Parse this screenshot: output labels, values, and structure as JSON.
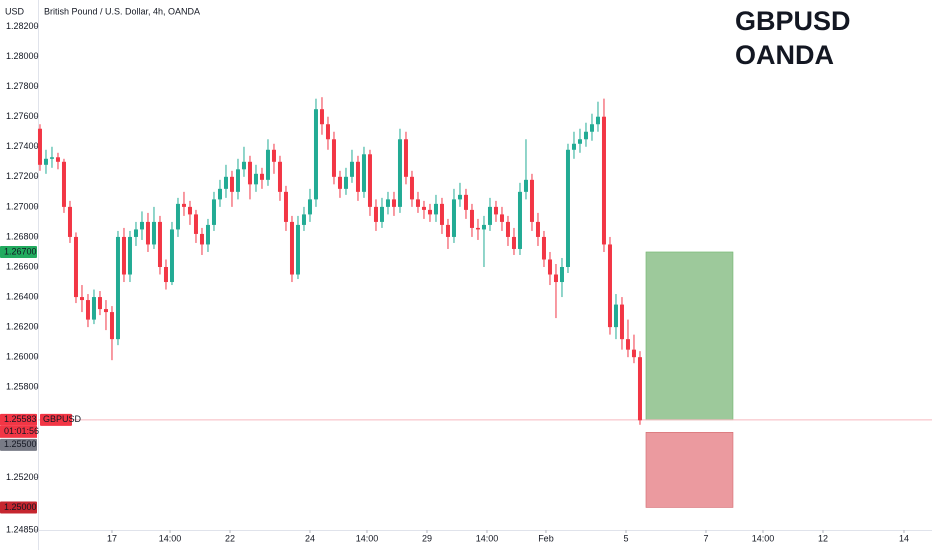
{
  "chart_data": {
    "type": "candlestick",
    "title": "British Pound / U.S. Dollar, 4h, OANDA",
    "y_axis_label": "USD",
    "watermark": [
      "GBPUSD",
      "OANDA"
    ],
    "symbol": "GBPUSD",
    "countdown": "01:01:56",
    "up_color": "#22ab94",
    "down_color": "#f23645",
    "ylim": [
      1.2485,
      1.2835
    ],
    "yticks": [
      {
        "value": 1.282,
        "label": "1.28200"
      },
      {
        "value": 1.28,
        "label": "1.28000"
      },
      {
        "value": 1.278,
        "label": "1.27800"
      },
      {
        "value": 1.276,
        "label": "1.27600"
      },
      {
        "value": 1.274,
        "label": "1.27400"
      },
      {
        "value": 1.272,
        "label": "1.27200"
      },
      {
        "value": 1.27,
        "label": "1.27000"
      },
      {
        "value": 1.268,
        "label": "1.26800"
      },
      {
        "value": 1.266,
        "label": "1.26600"
      },
      {
        "value": 1.264,
        "label": "1.26400"
      },
      {
        "value": 1.262,
        "label": "1.26200"
      },
      {
        "value": 1.26,
        "label": "1.26000"
      },
      {
        "value": 1.258,
        "label": "1.25800"
      },
      {
        "value": 1.252,
        "label": "1.25200"
      },
      {
        "value": 1.2485,
        "label": "1.24850"
      }
    ],
    "xlim": [
      -0.33,
      148.67
    ],
    "xticks": [
      {
        "value": 12,
        "label": "17"
      },
      {
        "value": 21.67,
        "label": "14:00"
      },
      {
        "value": 31.67,
        "label": "22"
      },
      {
        "value": 45,
        "label": "24"
      },
      {
        "value": 54.5,
        "label": "14:00"
      },
      {
        "value": 64.5,
        "label": "29"
      },
      {
        "value": 74.5,
        "label": "14:00"
      },
      {
        "value": 84.33,
        "label": "Feb"
      },
      {
        "value": 97.67,
        "label": "5"
      },
      {
        "value": 111,
        "label": "7"
      },
      {
        "value": 120.5,
        "label": "14:00"
      },
      {
        "value": 130.5,
        "label": "12"
      },
      {
        "value": 144,
        "label": "14"
      }
    ],
    "current_price": {
      "value": 1.25583,
      "label": "1.25583"
    },
    "position": {
      "x_range": [
        101,
        115.5
      ],
      "target": {
        "value": 1.267,
        "label": "1.26700"
      },
      "entry": {
        "value": 1.255,
        "label": "1.25500"
      },
      "stop": {
        "value": 1.25,
        "label": "1.25000"
      },
      "profit_color": "#9dc99b",
      "loss_color": "#eb9a9f"
    },
    "ohlc": [
      [
        1.2752,
        1.2755,
        1.2724,
        1.2728
      ],
      [
        1.2728,
        1.2738,
        1.2722,
        1.2732
      ],
      [
        1.2732,
        1.274,
        1.2726,
        1.2733
      ],
      [
        1.2733,
        1.2736,
        1.2725,
        1.273
      ],
      [
        1.273,
        1.2732,
        1.2696,
        1.27
      ],
      [
        1.27,
        1.2704,
        1.2676,
        1.268
      ],
      [
        1.268,
        1.2683,
        1.2636,
        1.264
      ],
      [
        1.264,
        1.2648,
        1.263,
        1.2638
      ],
      [
        1.2638,
        1.2642,
        1.262,
        1.2625
      ],
      [
        1.2625,
        1.2645,
        1.2622,
        1.264
      ],
      [
        1.264,
        1.2644,
        1.2628,
        1.2632
      ],
      [
        1.2632,
        1.2638,
        1.2618,
        1.263
      ],
      [
        1.263,
        1.2634,
        1.2598,
        1.2612
      ],
      [
        1.2612,
        1.2684,
        1.2608,
        1.268
      ],
      [
        1.268,
        1.2686,
        1.265,
        1.2655
      ],
      [
        1.2655,
        1.2684,
        1.265,
        1.268
      ],
      [
        1.268,
        1.269,
        1.2674,
        1.2685
      ],
      [
        1.2685,
        1.2697,
        1.2678,
        1.269
      ],
      [
        1.269,
        1.2696,
        1.267,
        1.2675
      ],
      [
        1.2675,
        1.27,
        1.2672,
        1.269
      ],
      [
        1.269,
        1.2694,
        1.2655,
        1.266
      ],
      [
        1.266,
        1.2665,
        1.2645,
        1.265
      ],
      [
        1.265,
        1.269,
        1.2648,
        1.2685
      ],
      [
        1.2685,
        1.2706,
        1.268,
        1.2702
      ],
      [
        1.2702,
        1.271,
        1.2694,
        1.27
      ],
      [
        1.27,
        1.2704,
        1.2688,
        1.2695
      ],
      [
        1.2695,
        1.2698,
        1.2676,
        1.2682
      ],
      [
        1.2682,
        1.2686,
        1.2668,
        1.2675
      ],
      [
        1.2675,
        1.2692,
        1.267,
        1.2688
      ],
      [
        1.2688,
        1.271,
        1.2684,
        1.2705
      ],
      [
        1.2705,
        1.2718,
        1.27,
        1.2712
      ],
      [
        1.2712,
        1.2728,
        1.2706,
        1.272
      ],
      [
        1.272,
        1.2724,
        1.27,
        1.271
      ],
      [
        1.271,
        1.2732,
        1.2705,
        1.2725
      ],
      [
        1.2725,
        1.274,
        1.272,
        1.273
      ],
      [
        1.273,
        1.2734,
        1.2705,
        1.2715
      ],
      [
        1.2715,
        1.2728,
        1.271,
        1.2722
      ],
      [
        1.2722,
        1.2726,
        1.2712,
        1.2718
      ],
      [
        1.2718,
        1.2745,
        1.2714,
        1.2738
      ],
      [
        1.2738,
        1.2742,
        1.2722,
        1.273
      ],
      [
        1.273,
        1.2734,
        1.2704,
        1.271
      ],
      [
        1.271,
        1.2714,
        1.2684,
        1.269
      ],
      [
        1.269,
        1.2694,
        1.265,
        1.2655
      ],
      [
        1.2655,
        1.2694,
        1.2652,
        1.2688
      ],
      [
        1.2688,
        1.27,
        1.2684,
        1.2695
      ],
      [
        1.2695,
        1.2712,
        1.269,
        1.2705
      ],
      [
        1.2705,
        1.2772,
        1.27,
        1.2765
      ],
      [
        1.2765,
        1.2773,
        1.2748,
        1.2755
      ],
      [
        1.2755,
        1.276,
        1.2738,
        1.2745
      ],
      [
        1.2745,
        1.275,
        1.2715,
        1.272
      ],
      [
        1.272,
        1.2724,
        1.2706,
        1.2712
      ],
      [
        1.2712,
        1.2726,
        1.2708,
        1.272
      ],
      [
        1.272,
        1.2738,
        1.2716,
        1.273
      ],
      [
        1.273,
        1.2734,
        1.2704,
        1.271
      ],
      [
        1.271,
        1.274,
        1.2706,
        1.2735
      ],
      [
        1.2735,
        1.2738,
        1.2694,
        1.27
      ],
      [
        1.27,
        1.2705,
        1.2684,
        1.269
      ],
      [
        1.269,
        1.2706,
        1.2686,
        1.27
      ],
      [
        1.27,
        1.271,
        1.2695,
        1.2705
      ],
      [
        1.2705,
        1.271,
        1.2694,
        1.27
      ],
      [
        1.27,
        1.2752,
        1.2696,
        1.2745
      ],
      [
        1.2745,
        1.275,
        1.2715,
        1.272
      ],
      [
        1.272,
        1.2724,
        1.27,
        1.2705
      ],
      [
        1.2705,
        1.271,
        1.2696,
        1.27
      ],
      [
        1.27,
        1.2704,
        1.2692,
        1.2698
      ],
      [
        1.2698,
        1.2702,
        1.269,
        1.2695
      ],
      [
        1.2695,
        1.2708,
        1.269,
        1.2702
      ],
      [
        1.2702,
        1.2706,
        1.2682,
        1.2688
      ],
      [
        1.2688,
        1.2692,
        1.2672,
        1.268
      ],
      [
        1.268,
        1.2712,
        1.2676,
        1.2705
      ],
      [
        1.2705,
        1.2716,
        1.27,
        1.2708
      ],
      [
        1.2708,
        1.2712,
        1.2692,
        1.2698
      ],
      [
        1.2698,
        1.2702,
        1.268,
        1.2686
      ],
      [
        1.2686,
        1.2692,
        1.2678,
        1.2685
      ],
      [
        1.2685,
        1.2694,
        1.266,
        1.2688
      ],
      [
        1.2688,
        1.2706,
        1.2684,
        1.27
      ],
      [
        1.27,
        1.2704,
        1.269,
        1.2695
      ],
      [
        1.2695,
        1.27,
        1.2684,
        1.269
      ],
      [
        1.269,
        1.2694,
        1.2674,
        1.268
      ],
      [
        1.268,
        1.2686,
        1.2668,
        1.2672
      ],
      [
        1.2672,
        1.2716,
        1.2668,
        1.271
      ],
      [
        1.271,
        1.2745,
        1.2705,
        1.2718
      ],
      [
        1.2718,
        1.2722,
        1.2684,
        1.269
      ],
      [
        1.269,
        1.2696,
        1.2674,
        1.268
      ],
      [
        1.268,
        1.2684,
        1.266,
        1.2665
      ],
      [
        1.2665,
        1.267,
        1.2648,
        1.2655
      ],
      [
        1.2655,
        1.2662,
        1.2626,
        1.265
      ],
      [
        1.265,
        1.2666,
        1.264,
        1.266
      ],
      [
        1.266,
        1.2742,
        1.2656,
        1.2738
      ],
      [
        1.2738,
        1.275,
        1.2732,
        1.2742
      ],
      [
        1.2742,
        1.2752,
        1.2736,
        1.2745
      ],
      [
        1.2745,
        1.2756,
        1.274,
        1.275
      ],
      [
        1.275,
        1.2762,
        1.2744,
        1.2755
      ],
      [
        1.2755,
        1.277,
        1.275,
        1.276
      ],
      [
        1.276,
        1.2772,
        1.267,
        1.2675
      ],
      [
        1.2675,
        1.268,
        1.2615,
        1.262
      ],
      [
        1.262,
        1.2642,
        1.2612,
        1.2635
      ],
      [
        1.2635,
        1.264,
        1.2605,
        1.2612
      ],
      [
        1.2612,
        1.2625,
        1.26,
        1.2605
      ],
      [
        1.2605,
        1.2615,
        1.2596,
        1.26
      ],
      [
        1.26,
        1.2604,
        1.2555,
        1.2558
      ]
    ]
  }
}
